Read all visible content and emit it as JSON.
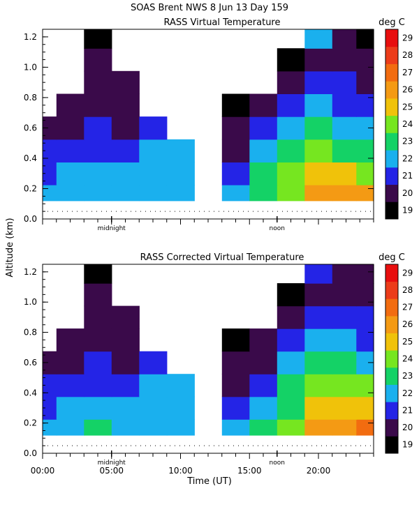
{
  "figure": {
    "title": "SOAS Brent NWS   8 Jun 13 Day 159",
    "ylabel_shared": "Altitude (km)",
    "xlabel": "Time (UT)",
    "x_tick_labels": [
      "00:00",
      "05:00",
      "10:00",
      "15:00",
      "20:00"
    ],
    "midnight_label": "midnight",
    "noon_label": "noon"
  },
  "chart_data": [
    {
      "type": "heatmap",
      "title": "RASS Virtual Temperature",
      "unit_label": "deg C",
      "xlabel": "",
      "ylabel": "Altitude (km)",
      "xlim": [
        0,
        24
      ],
      "ylim": [
        0,
        1.25
      ],
      "y_ticks": [
        "0.0",
        "0.2",
        "0.4",
        "0.6",
        "0.8",
        "1.0",
        "1.2"
      ],
      "colorbar": {
        "levels": [
          19,
          20,
          21,
          22,
          23,
          24,
          25,
          26,
          27,
          28,
          29
        ],
        "colors": [
          "#000000",
          "#3a0a4a",
          "#2424e6",
          "#1ab0ee",
          "#14d266",
          "#76e620",
          "#f0c20a",
          "#f49a14",
          "#f26c10",
          "#ec3c1a",
          "#e80e0e"
        ]
      },
      "x_hours": [
        0,
        2,
        4,
        6,
        8,
        10,
        12,
        14,
        16,
        18,
        20,
        22,
        23.5
      ],
      "altitudes_km": [
        0.15,
        0.3,
        0.45,
        0.6,
        0.75,
        0.9,
        1.05,
        1.2
      ],
      "values_degC": [
        [
          22,
          22,
          22,
          22,
          22,
          22,
          null,
          22,
          23,
          24,
          26,
          26,
          26
        ],
        [
          21,
          22,
          22,
          22,
          22,
          22,
          null,
          21,
          23,
          24,
          25,
          25,
          24
        ],
        [
          21,
          21,
          21,
          21,
          22,
          22,
          null,
          20,
          22,
          23,
          24,
          23,
          23
        ],
        [
          20,
          20,
          21,
          20,
          21,
          null,
          null,
          20,
          21,
          22,
          23,
          22,
          22
        ],
        [
          null,
          20,
          20,
          20,
          null,
          null,
          null,
          19,
          20,
          21,
          22,
          21,
          21
        ],
        [
          null,
          null,
          20,
          20,
          null,
          null,
          null,
          null,
          null,
          20,
          21,
          21,
          20
        ],
        [
          null,
          null,
          20,
          null,
          null,
          null,
          null,
          null,
          null,
          19,
          20,
          20,
          20
        ],
        [
          null,
          null,
          19,
          null,
          null,
          null,
          null,
          null,
          null,
          null,
          22,
          20,
          19
        ]
      ]
    },
    {
      "type": "heatmap",
      "title": "RASS Corrected Virtual Temperature",
      "unit_label": "deg C",
      "xlabel": "Time (UT)",
      "ylabel": "Altitude (km)",
      "xlim": [
        0,
        24
      ],
      "ylim": [
        0,
        1.25
      ],
      "y_ticks": [
        "0.0",
        "0.2",
        "0.4",
        "0.6",
        "0.8",
        "1.0",
        "1.2"
      ],
      "colorbar": {
        "levels": [
          19,
          20,
          21,
          22,
          23,
          24,
          25,
          26,
          27,
          28,
          29
        ],
        "colors": [
          "#000000",
          "#3a0a4a",
          "#2424e6",
          "#1ab0ee",
          "#14d266",
          "#76e620",
          "#f0c20a",
          "#f49a14",
          "#f26c10",
          "#ec3c1a",
          "#e80e0e"
        ]
      },
      "x_hours": [
        0,
        2,
        4,
        6,
        8,
        10,
        12,
        14,
        16,
        18,
        20,
        22,
        23.5
      ],
      "altitudes_km": [
        0.15,
        0.3,
        0.45,
        0.6,
        0.75,
        0.9,
        1.05,
        1.2
      ],
      "values_degC": [
        [
          22,
          22,
          23,
          22,
          22,
          22,
          null,
          22,
          23,
          24,
          26,
          26,
          27
        ],
        [
          21,
          22,
          22,
          22,
          22,
          22,
          null,
          21,
          22,
          23,
          25,
          25,
          25
        ],
        [
          21,
          21,
          21,
          21,
          22,
          22,
          null,
          20,
          21,
          23,
          24,
          24,
          24
        ],
        [
          20,
          20,
          21,
          20,
          21,
          null,
          null,
          20,
          20,
          22,
          23,
          23,
          22
        ],
        [
          null,
          20,
          20,
          20,
          null,
          null,
          null,
          19,
          20,
          21,
          22,
          22,
          21
        ],
        [
          null,
          null,
          20,
          20,
          null,
          null,
          null,
          null,
          null,
          20,
          21,
          21,
          21
        ],
        [
          null,
          null,
          20,
          null,
          null,
          null,
          null,
          null,
          null,
          19,
          20,
          20,
          20
        ],
        [
          null,
          null,
          19,
          null,
          null,
          null,
          null,
          null,
          null,
          null,
          21,
          20,
          20
        ]
      ]
    }
  ]
}
